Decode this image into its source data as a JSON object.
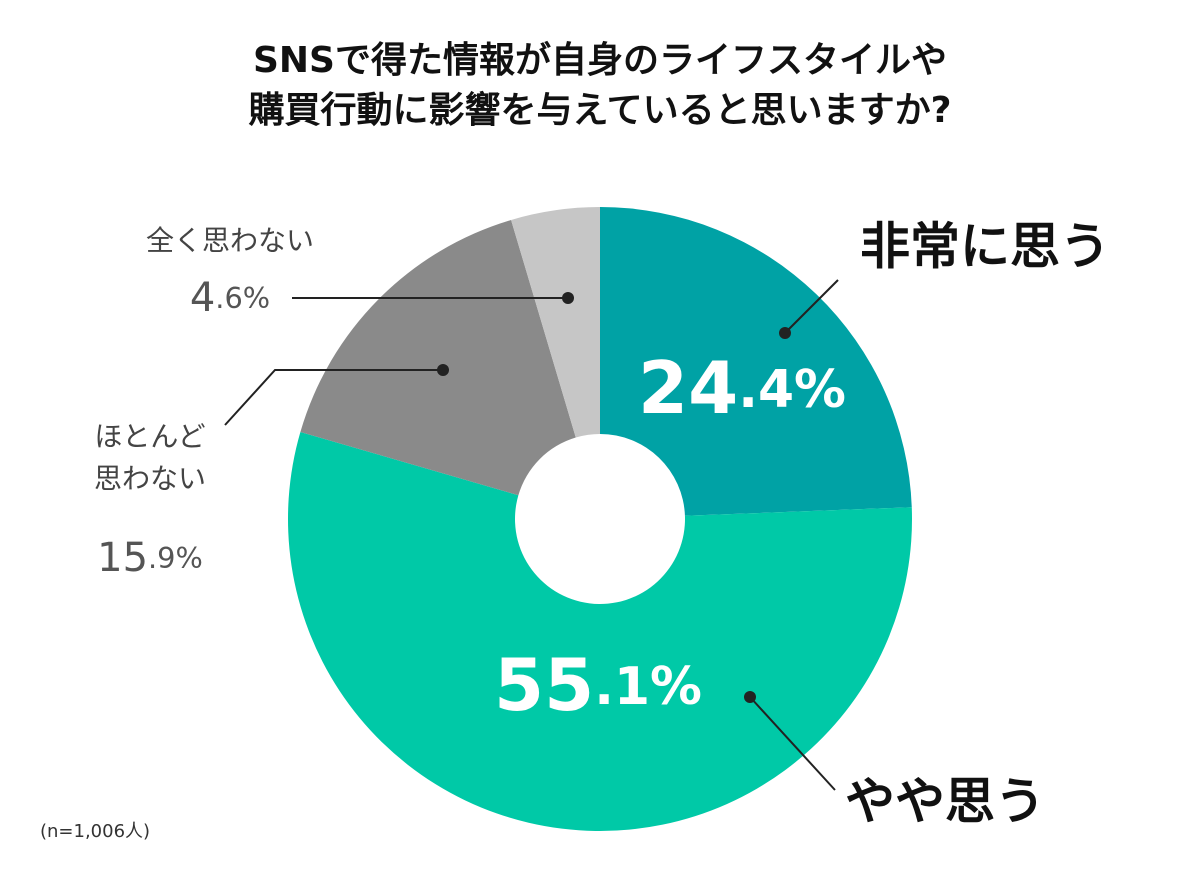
{
  "chart_data": {
    "type": "pie",
    "title_lines": [
      "SNSで得た情報が自身のライフスタイルや",
      "購買行動に影響を与えていると思いますか?"
    ],
    "categories": [
      "非常に思う",
      "やや思う",
      "ほとんど思わない",
      "全く思わない"
    ],
    "values": [
      24.4,
      55.1,
      15.9,
      4.6
    ],
    "value_labels": [
      "24.4%",
      "55.1%",
      "15.9%",
      "4.6%"
    ],
    "colors": [
      "#00a2a5",
      "#00c9a7",
      "#8a8a8a",
      "#c6c6c6"
    ],
    "note": "(n=1,006人)"
  }
}
